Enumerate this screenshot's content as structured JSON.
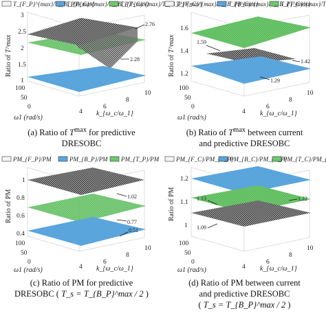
{
  "colors": {
    "white_surface": "#f4f4f4",
    "blue_surface": "#5aa5dc",
    "green_surface": "#6cc96c",
    "dark_surface": "#2e2e2e"
  },
  "panels": [
    {
      "legend": [
        "T_{F_P}^{max}/T_{B_P}^{max}",
        "T_{B_C}^{max}/T_{B_P}^{max}",
        "T_{T_C}^{max}/T_{B_P}^{max}"
      ],
      "zlabel_prefix": "Ratio of ",
      "zlabel_symbol": "T^max",
      "ztick": [
        "1",
        "1.5",
        "2",
        "2.5",
        "3"
      ],
      "xlabel": "ω1 (rad/s)",
      "ylabel": "k_{ω_c/ω_1}",
      "xtick": [
        "100",
        "50",
        "0"
      ],
      "ytick": [
        "4",
        "6",
        "8",
        "10"
      ],
      "annotations": [
        "2.76",
        "2.28"
      ],
      "caption_line1_pre": "(a) Ratio of ",
      "caption_line1_sym": "T",
      "caption_line1_sup": "max",
      "caption_line1_post": " for predictive",
      "caption_line2": "DRESOBC"
    },
    {
      "legend": [
        "T_{F_C}^{max}/T_{F_P}^{max}",
        "T_{B_C}^{max}/T_{B_P}^{max}",
        "T_{T_C}^{max}/T_{T_P}^{max}"
      ],
      "zlabel_prefix": "Ratio of ",
      "zlabel_symbol": "T^max",
      "ztick": [
        "1.2",
        "1.4",
        "1.6"
      ],
      "xlabel": "ω1 (rad/s)",
      "ylabel": "k_{ω_c/ω_1}",
      "xtick": [
        "100",
        "50",
        "0"
      ],
      "ytick": [
        "4",
        "6",
        "8",
        "10"
      ],
      "annotations": [
        "1.59",
        "1.42",
        "1.29"
      ],
      "caption_line1_pre": "(b) Ratio of ",
      "caption_line1_sym": "T",
      "caption_line1_sup": "max",
      "caption_line1_post": " between current",
      "caption_line2": "and predictive DRESOBC"
    },
    {
      "legend": [
        "PM_{F_P}/PM",
        "PM_{B_P}/PM",
        "PM_{T_P}/PM"
      ],
      "zlabel_prefix": "Ratio of PM",
      "zlabel_symbol": "",
      "ztick": [
        "0.4",
        "0.6",
        "0.8",
        "1"
      ],
      "xlabel": "ω1 (rad/s)",
      "ylabel": "k_{ω_c/ω_1}",
      "xtick": [
        "100",
        "50",
        "0"
      ],
      "ytick": [
        "4",
        "6",
        "8",
        "10"
      ],
      "annotations": [
        "1.02",
        "0.77",
        "0.51"
      ],
      "caption_line1": "(c) Ratio of PM for predictive",
      "caption_line2_pre": "DRESOBC ( ",
      "caption_line2_formula": "T_s = T_{B_P}^max / 2",
      "caption_line2_post": " )"
    },
    {
      "legend": [
        "PM_{F_C}/PM_{F_P}",
        "PM_{B_C}/PM_{B_P}",
        "PM_{T_C}/PM_{T_P}"
      ],
      "zlabel_prefix": "Ratio of PM",
      "zlabel_symbol": "",
      "ztick": [
        "1",
        "1.1",
        "1.2"
      ],
      "xlabel": "ω1 (rad/s)",
      "ylabel": "k_{ω_c/ω_1}",
      "xtick": [
        "100",
        "50",
        "0"
      ],
      "ytick": [
        "4",
        "6",
        "8",
        "10"
      ],
      "annotations": [
        "1.13",
        "1.22",
        "1.09"
      ],
      "caption_line1": "(d) Ratio of PM between current",
      "caption_line2": "and predictive DRESOBC",
      "caption_line3_pre": "( ",
      "caption_line3_formula": "T_s = T_{B_P}^max / 2",
      "caption_line3_post": " )"
    }
  ]
}
